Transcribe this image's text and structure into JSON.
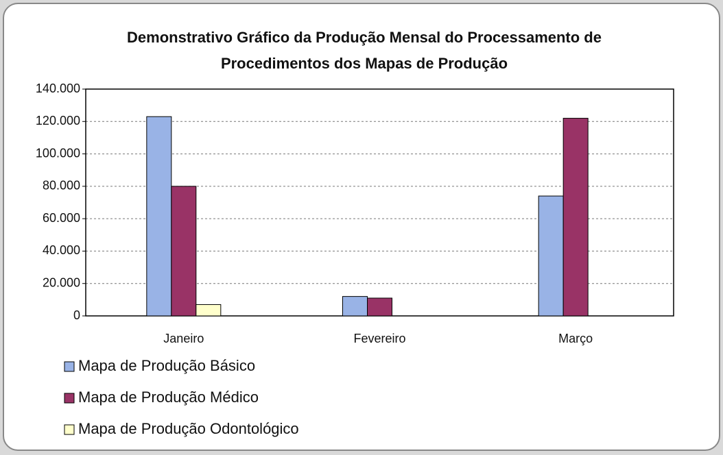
{
  "chart_data": {
    "type": "bar",
    "title": "Demonstrativo Gráfico da Produção Mensal do Processamento de Procedimentos dos Mapas de Produção",
    "categories": [
      "Janeiro",
      "Fevereiro",
      "Março"
    ],
    "series": [
      {
        "name": "Mapa de Produção Básico",
        "color": "#99b3e6",
        "values": [
          123000,
          12000,
          74000
        ]
      },
      {
        "name": "Mapa de Produção Médico",
        "color": "#993366",
        "values": [
          80000,
          11000,
          122000
        ]
      },
      {
        "name": "Mapa de Produção Odontológico",
        "color": "#ffffcc",
        "values": [
          7000,
          0,
          0
        ]
      }
    ],
    "ylim": [
      0,
      140000
    ],
    "yticks": [
      0,
      {
        "value": 20000,
        "label": "20.000"
      },
      {
        "value": 40000,
        "label": "40.000"
      },
      {
        "value": 60000,
        "label": "60.000"
      },
      {
        "value": 80000,
        "label": "80.000"
      },
      {
        "value": 100000,
        "label": "100.000"
      },
      {
        "value": 120000,
        "label": "120.000"
      },
      {
        "value": 140000,
        "label": "140.000"
      }
    ],
    "grid": true,
    "legend": "bottom-left"
  }
}
